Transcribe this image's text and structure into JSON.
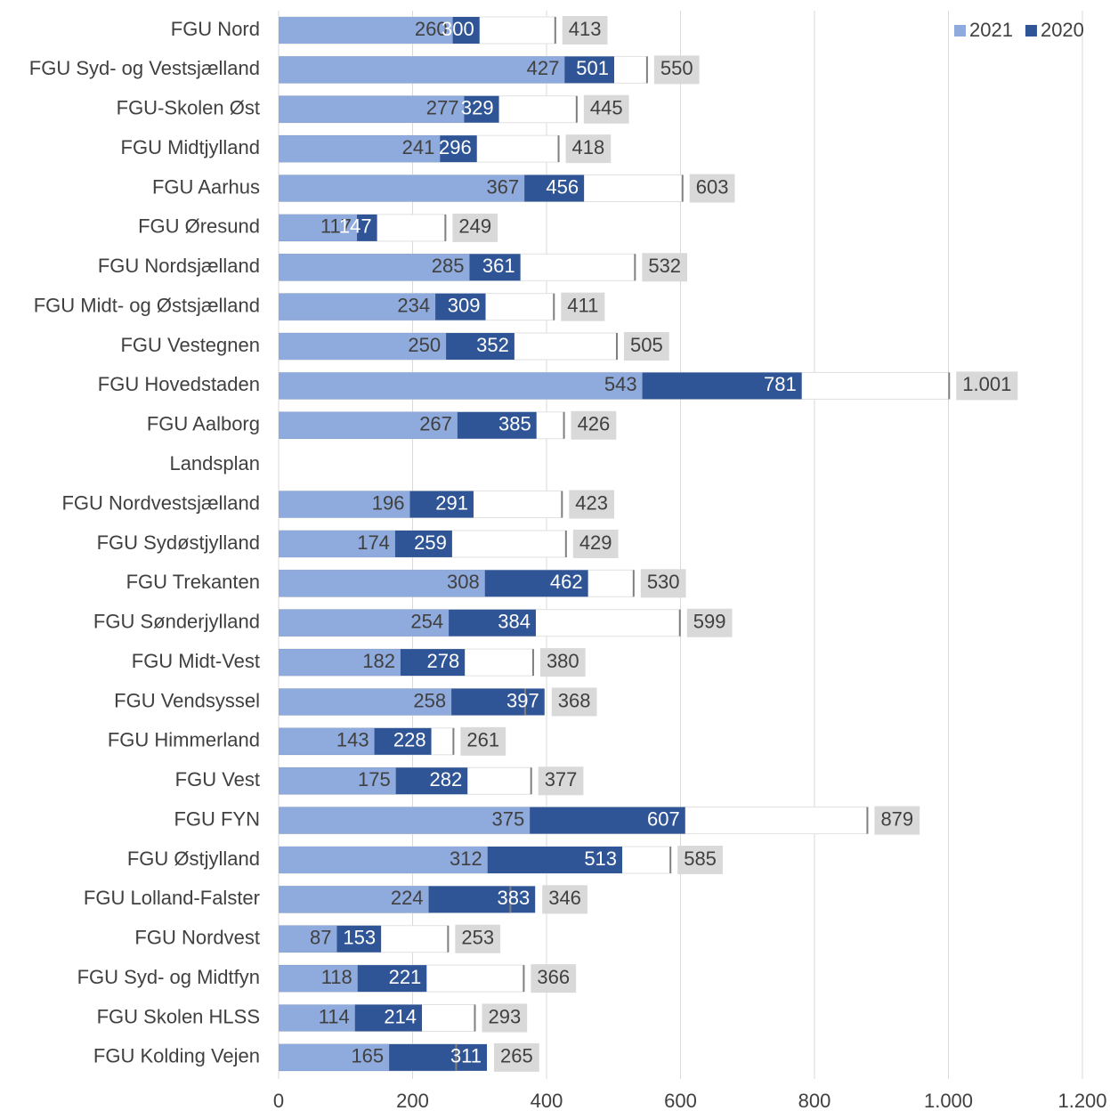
{
  "chart_data": {
    "type": "bar",
    "orientation": "horizontal",
    "categories": [
      "FGU Nord",
      "FGU Syd- og Vestsjælland",
      "FGU-Skolen Øst",
      "FGU Midtjylland",
      "FGU Aarhus",
      "FGU Øresund",
      "FGU Nordsjælland",
      "FGU Midt- og Østsjælland",
      "FGU Vestegnen",
      "FGU Hovedstaden",
      "FGU Aalborg",
      "Landsplan",
      "FGU Nordvestsjælland",
      "FGU Sydøstjylland",
      "FGU Trekanten",
      "FGU Sønderjylland",
      "FGU Midt-Vest",
      "FGU Vendsyssel",
      "FGU Himmerland",
      "FGU Vest",
      "FGU FYN",
      "FGU Østjylland",
      "FGU Lolland-Falster",
      "FGU Nordvest",
      "FGU Syd- og Midtfyn",
      "FGU Skolen HLSS",
      "FGU Kolding Vejen"
    ],
    "series": [
      {
        "name": "2021",
        "color": "#8faadc",
        "values": [
          260,
          427,
          277,
          241,
          367,
          117,
          285,
          234,
          250,
          543,
          267,
          null,
          196,
          174,
          308,
          254,
          182,
          258,
          143,
          175,
          375,
          312,
          224,
          87,
          118,
          114,
          165
        ]
      },
      {
        "name": "2020",
        "color": "#2f5597",
        "values": [
          300,
          501,
          329,
          296,
          456,
          147,
          361,
          309,
          352,
          781,
          385,
          null,
          291,
          259,
          462,
          384,
          278,
          397,
          228,
          282,
          607,
          513,
          383,
          153,
          221,
          214,
          311
        ]
      },
      {
        "color": "#ffffff",
        "values": [
          413,
          550,
          445,
          418,
          603,
          249,
          532,
          411,
          505,
          1001,
          426,
          null,
          423,
          429,
          530,
          599,
          380,
          368,
          261,
          377,
          879,
          585,
          346,
          253,
          366,
          293,
          265
        ],
        "value_labels": [
          "413",
          "550",
          "445",
          "418",
          "603",
          "249",
          "532",
          "411",
          "505",
          "1.001",
          "426",
          null,
          "423",
          "429",
          "530",
          "599",
          "380",
          "368",
          "261",
          "377",
          "879",
          "585",
          "346",
          "253",
          "366",
          "293",
          "265"
        ]
      }
    ],
    "xlim": [
      0,
      1200
    ],
    "xticks": [
      0,
      200,
      400,
      600,
      800,
      {
        "value": 1000,
        "label": "1.000"
      },
      {
        "value": 1200,
        "label": "1.200"
      }
    ],
    "grid": true,
    "legend": "top-right"
  }
}
